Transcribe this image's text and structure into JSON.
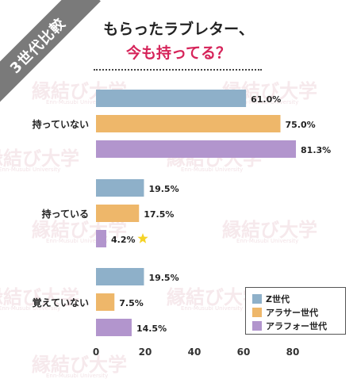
{
  "badge": "3世代比較",
  "title_line1": "もらったラブレター、",
  "title_line2": "今も持ってる？",
  "watermark": {
    "text": "縁結び大学",
    "sub": "Enn-Musubi University"
  },
  "colors": {
    "z": "#8eb0c9",
    "arasa": "#eeb76a",
    "arafo": "#b295cd",
    "accent": "#d6245a"
  },
  "chart_data": {
    "type": "bar",
    "orientation": "horizontal",
    "categories": [
      "持っていない",
      "持っている",
      "覚えていない"
    ],
    "series": [
      {
        "name": "Z世代",
        "values": [
          61.0,
          19.5,
          19.5
        ],
        "labels": [
          "61.0%",
          "19.5%",
          "19.5%"
        ]
      },
      {
        "name": "アラサー世代",
        "values": [
          75.0,
          17.5,
          7.5
        ],
        "labels": [
          "75.0%",
          "17.5%",
          "7.5%"
        ]
      },
      {
        "name": "アラフォー世代",
        "values": [
          81.3,
          4.2,
          14.5
        ],
        "labels": [
          "81.3%",
          "4.2%",
          "14.5%"
        ]
      }
    ],
    "xlim": [
      0,
      80
    ],
    "xticks": [
      "0",
      "20",
      "40",
      "60",
      "80"
    ],
    "title": "もらったラブレター、今も持ってる？",
    "legend_position": "bottom-right",
    "annotation": {
      "category": "持っている",
      "series": "アラフォー世代",
      "marker": "star"
    }
  }
}
